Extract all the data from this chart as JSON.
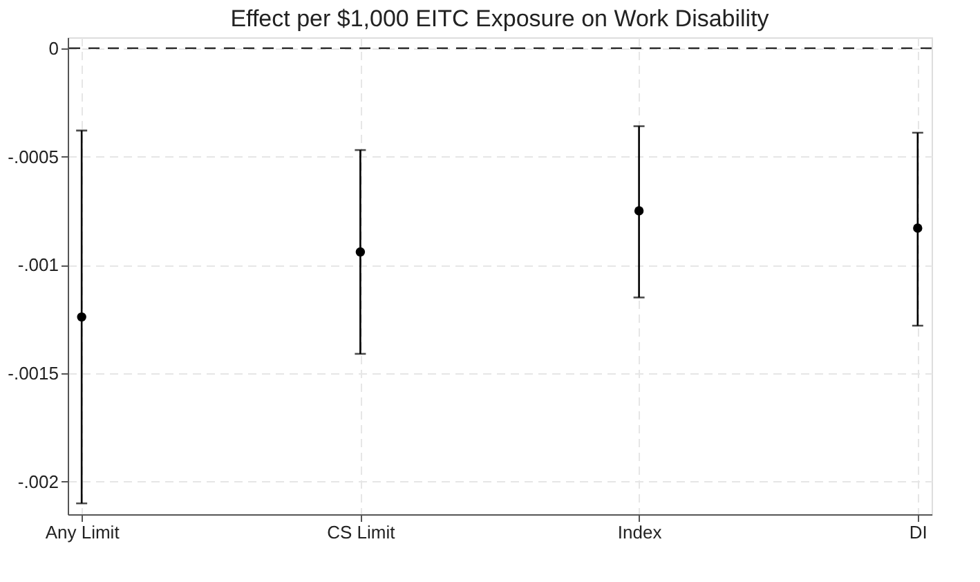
{
  "chart_data": {
    "type": "scatter",
    "title": "Effect per $1,000 EITC Exposure on Work Disability",
    "categories": [
      "Any Limit",
      "CS Limit",
      "Index",
      "DI"
    ],
    "values": [
      -0.00124,
      -0.00094,
      -0.00075,
      -0.00083
    ],
    "errors": [
      [
        -0.0021,
        -0.00038
      ],
      [
        -0.00141,
        -0.00047
      ],
      [
        -0.00115,
        -0.00036
      ],
      [
        -0.00128,
        -0.00039
      ]
    ],
    "color": "#000000",
    "marker": "circle",
    "grid": true,
    "ylim": [
      -0.00215,
      5e-05
    ],
    "yticks": [
      {
        "value": -0.002,
        "label": "-.002"
      },
      {
        "value": -0.0015,
        "label": "-.0015"
      },
      {
        "value": -0.001,
        "label": "-.001"
      },
      {
        "value": -0.0005,
        "label": "-.0005"
      },
      0
    ],
    "ref_lines": [
      {
        "axis": "y",
        "value": 0,
        "color": "#333333",
        "line_style": "dashed"
      }
    ]
  }
}
